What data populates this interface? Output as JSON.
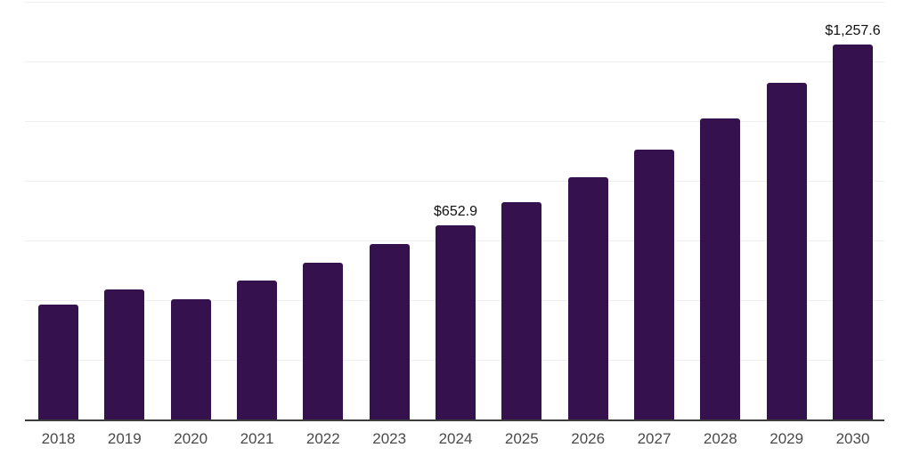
{
  "chart_data": {
    "type": "bar",
    "categories": [
      "2018",
      "2019",
      "2020",
      "2021",
      "2022",
      "2023",
      "2024",
      "2025",
      "2026",
      "2027",
      "2028",
      "2029",
      "2030"
    ],
    "values": [
      386,
      436,
      404,
      466,
      526,
      588,
      652.9,
      728,
      812,
      904,
      1010,
      1129,
      1257.6
    ],
    "data_labels": {
      "2024": "$652.9",
      "2030": "$1,257.6"
    },
    "ylim": [
      0,
      1400
    ],
    "grid_interval": 200,
    "grid": "horizontal-only",
    "legend": "none",
    "colors": {
      "bar": "#35124D",
      "gridline": "#EFEFEF",
      "axis_line": "#3D3D3D",
      "tick_label": "#4A4A4A",
      "data_label": "#111111",
      "background": "#FFFFFF"
    }
  }
}
